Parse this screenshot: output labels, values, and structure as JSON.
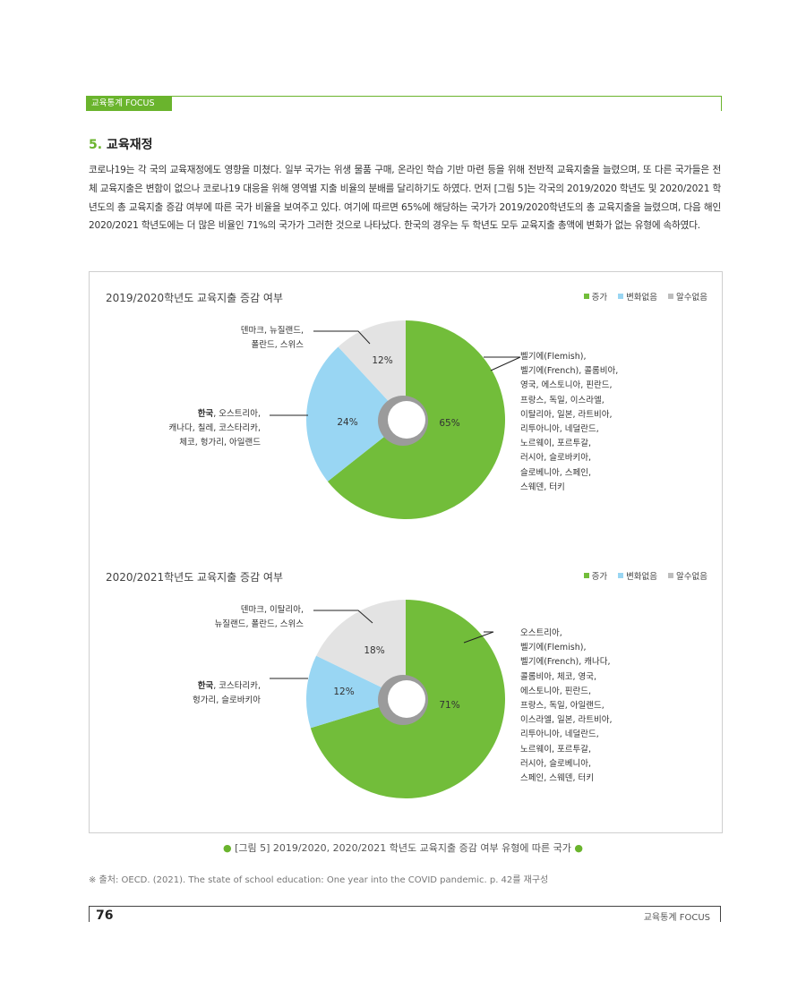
{
  "header": {
    "tag": "교육통계 FOCUS"
  },
  "section": {
    "num": "5.",
    "title": " 교육재정"
  },
  "paragraph": "코로나19는 각 국의 교육재정에도 영향을 미쳤다. 일부 국가는 위생 물품 구매, 온라인 학습 기반 마련 등을 위해 전반적 교육지출을 늘렸으며, 또 다른 국가들은 전체 교육지출은 변함이 없으나 코로나19 대응을 위해 영역별 지출 비율의 분배를 달리하기도 하였다. 먼저 [그림 5]는 각국의 2019/2020 학년도 및 2020/2021 학년도의 총 교육지출 증감 여부에 따른 국가 비율을 보여주고 있다. 여기에 따르면 65%에 해당하는 국가가 2019/2020학년도의 총 교육지출을 늘렸으며, 다음 해인 2020/2021 학년도에는 더 많은 비율인 71%의 국가가 그러한 것으로 나타났다. 한국의 경우는 두 학년도 모두 교육지출 총액에 변화가 없는 유형에 속하였다.",
  "colors": {
    "increase": "#72bd3a",
    "nochange": "#99d6f3",
    "unknown": "#e3e3e3",
    "accent": "#6ab42d"
  },
  "chart_data": [
    {
      "type": "pie",
      "title": "2019/2020학년도 교육지출 증감 여부",
      "legend": [
        "증가",
        "변화없음",
        "알수없음"
      ],
      "series": [
        {
          "name": "증가",
          "value": 65,
          "label": "65%",
          "countries": [
            "벨기에(Flemish),",
            "벨기에(French), 콜롬비아,",
            "영국, 에스토니아, 핀란드,",
            "프랑스, 독일, 이스라엘,",
            "이탈리아, 일본, 라트비아,",
            "리투아니아, 네덜란드,",
            "노르웨이, 포르투갈,",
            "러시아, 슬로바키아,",
            "슬로베니아, 스페인,",
            "스웨덴, 터키"
          ]
        },
        {
          "name": "변화없음",
          "value": 24,
          "label": "24%",
          "countries_bold": "한국",
          "countries": [
            ", 오스트리아,",
            "캐나다, 칠레, 코스타리카,",
            "체코, 헝가리, 아일랜드"
          ]
        },
        {
          "name": "알수없음",
          "value": 12,
          "label": "12%",
          "countries": [
            "덴마크, 뉴질랜드,",
            "폴란드, 스위스"
          ]
        }
      ]
    },
    {
      "type": "pie",
      "title": "2020/2021학년도 교육지출 증감 여부",
      "legend": [
        "증가",
        "변화없음",
        "알수없음"
      ],
      "series": [
        {
          "name": "증가",
          "value": 71,
          "label": "71%",
          "countries": [
            "오스트리아,",
            "벨기에(Flemish),",
            "벨기에(French), 캐나다,",
            "콜롬비아, 체코, 영국,",
            "에스토니아, 핀란드,",
            "프랑스, 독일, 아일랜드,",
            "이스라엘, 일본, 라트비아,",
            "리투아니아, 네덜란드,",
            "노르웨이, 포르투갈,",
            "러시아, 슬로베니아,",
            "스페인, 스웨덴, 터키"
          ]
        },
        {
          "name": "변화없음",
          "value": 12,
          "label": "12%",
          "countries_bold": "한국",
          "countries": [
            ", 코스타리카,",
            "헝가리, 슬로바키아"
          ]
        },
        {
          "name": "알수없음",
          "value": 18,
          "label": "18%",
          "countries": [
            "덴마크, 이탈리아,",
            "뉴질랜드, 폴란드, 스위스"
          ]
        }
      ]
    }
  ],
  "caption": {
    "bullet": "●",
    "text": " [그림 5] 2019/2020, 2020/2021 학년도 교육지출 증감 여부 유형에 따른 국가 "
  },
  "source": "※ 출처: OECD. (2021). The state of school education: One year into the COVID pandemic. p. 42를 재구성",
  "footer": {
    "page": "76",
    "name": "교육통계 FOCUS"
  }
}
